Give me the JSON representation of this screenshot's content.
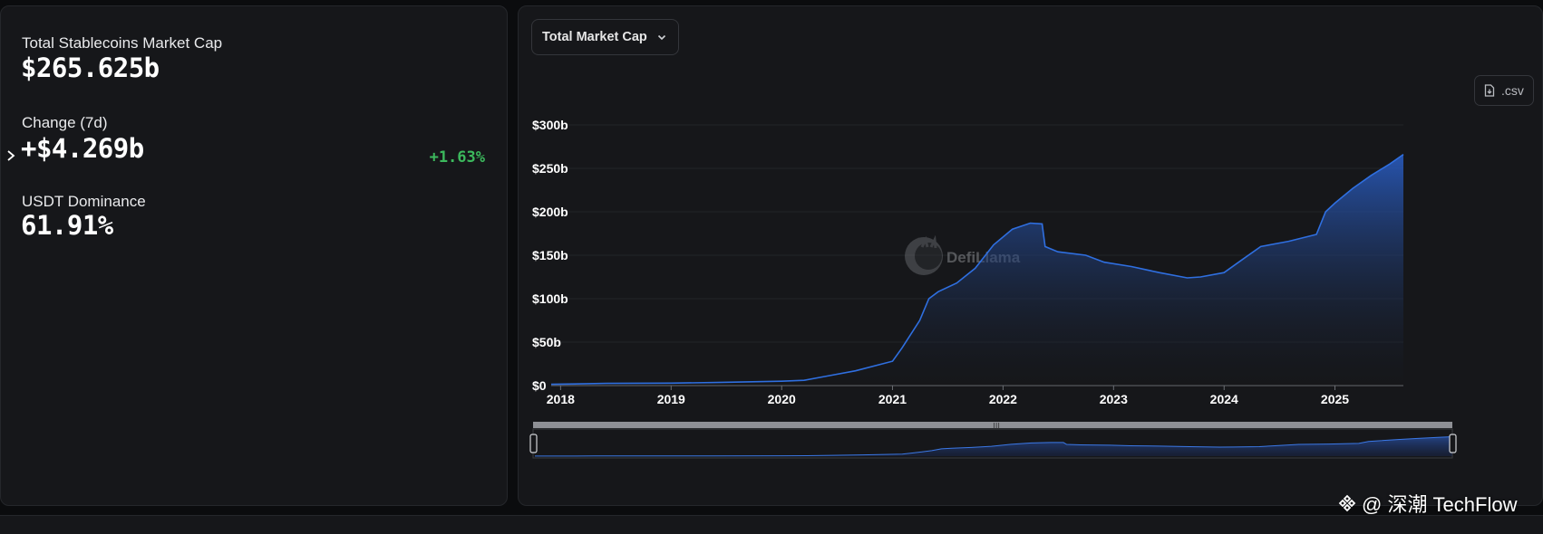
{
  "stats": {
    "market_cap_label": "Total Stablecoins Market Cap",
    "market_cap_value": "$265.625b",
    "change_label": "Change (7d)",
    "change_value": "+$4.269b",
    "change_percent": "+1.63%",
    "dominance_label": "USDT Dominance",
    "dominance_value": "61.91%"
  },
  "controls": {
    "metric_select": "Total Market Cap",
    "csv_label": ".csv"
  },
  "watermark": {
    "brand": "DefiLlama",
    "overlay": "@ 深潮 TechFlow"
  },
  "colors": {
    "accent_positive": "#3cb95d",
    "series": "#2f6fe0",
    "panel": "#16171a",
    "background": "#0b0c0e"
  },
  "chart_data": {
    "type": "area",
    "title": "",
    "xlabel": "",
    "ylabel": "",
    "ylim": [
      0,
      300
    ],
    "y_unit": "b",
    "y_ticks": [
      "$0",
      "$50b",
      "$100b",
      "$150b",
      "$200b",
      "$250b",
      "$300b"
    ],
    "x_ticks": [
      "2018",
      "2019",
      "2020",
      "2021",
      "2022",
      "2023",
      "2024",
      "2025"
    ],
    "grid": true,
    "series": [
      {
        "values_usd_b": [
          [
            "2017-12-01",
            1.5
          ],
          [
            "2018-06-01",
            2.5
          ],
          [
            "2019-01-01",
            2.8
          ],
          [
            "2019-06-01",
            3.5
          ],
          [
            "2020-01-01",
            5
          ],
          [
            "2020-03-15",
            6
          ],
          [
            "2020-06-01",
            11
          ],
          [
            "2020-09-01",
            17
          ],
          [
            "2021-01-01",
            28
          ],
          [
            "2021-02-01",
            43
          ],
          [
            "2021-04-01",
            75
          ],
          [
            "2021-05-01",
            100
          ],
          [
            "2021-06-01",
            108
          ],
          [
            "2021-08-01",
            118
          ],
          [
            "2021-10-01",
            135
          ],
          [
            "2021-12-01",
            162
          ],
          [
            "2022-02-01",
            180
          ],
          [
            "2022-04-01",
            187
          ],
          [
            "2022-05-10",
            186
          ],
          [
            "2022-05-20",
            160
          ],
          [
            "2022-07-01",
            154
          ],
          [
            "2022-10-01",
            150
          ],
          [
            "2022-12-01",
            142
          ],
          [
            "2023-03-01",
            137
          ],
          [
            "2023-06-01",
            130
          ],
          [
            "2023-09-01",
            124
          ],
          [
            "2023-10-15",
            125
          ],
          [
            "2024-01-01",
            130
          ],
          [
            "2024-03-01",
            145
          ],
          [
            "2024-05-01",
            160
          ],
          [
            "2024-08-01",
            166
          ],
          [
            "2024-11-01",
            174
          ],
          [
            "2024-12-01",
            200
          ],
          [
            "2025-01-01",
            210
          ],
          [
            "2025-03-01",
            227
          ],
          [
            "2025-05-01",
            242
          ],
          [
            "2025-07-01",
            255
          ],
          [
            "2025-08-15",
            266
          ]
        ]
      }
    ]
  }
}
